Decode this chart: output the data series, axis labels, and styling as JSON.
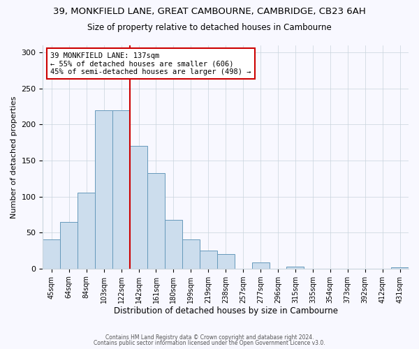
{
  "title": "39, MONKFIELD LANE, GREAT CAMBOURNE, CAMBRIDGE, CB23 6AH",
  "subtitle": "Size of property relative to detached houses in Cambourne",
  "xlabel": "Distribution of detached houses by size in Cambourne",
  "ylabel": "Number of detached properties",
  "bar_labels": [
    "45sqm",
    "64sqm",
    "84sqm",
    "103sqm",
    "122sqm",
    "142sqm",
    "161sqm",
    "180sqm",
    "199sqm",
    "219sqm",
    "238sqm",
    "257sqm",
    "277sqm",
    "296sqm",
    "315sqm",
    "335sqm",
    "354sqm",
    "373sqm",
    "392sqm",
    "412sqm",
    "431sqm"
  ],
  "bar_values": [
    40,
    65,
    105,
    220,
    220,
    170,
    133,
    68,
    40,
    25,
    20,
    0,
    8,
    0,
    3,
    0,
    0,
    0,
    0,
    0,
    2
  ],
  "bar_color": "#ccdded",
  "bar_edge_color": "#6699bb",
  "vline_color": "#cc0000",
  "annotation_title": "39 MONKFIELD LANE: 137sqm",
  "annotation_line1": "← 55% of detached houses are smaller (606)",
  "annotation_line2": "45% of semi-detached houses are larger (498) →",
  "annotation_box_color": "#cc0000",
  "ylim": [
    0,
    310
  ],
  "footer1": "Contains HM Land Registry data © Crown copyright and database right 2024.",
  "footer2": "Contains public sector information licensed under the Open Government Licence v3.0.",
  "bg_color": "#f8f8ff"
}
